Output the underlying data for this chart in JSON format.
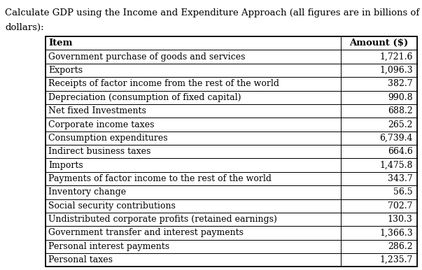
{
  "title_line1": "Calculate GDP using the Income and Expenditure Approach (all figures are in billions of",
  "title_line2": "dollars):",
  "col1_header": "Item",
  "col2_header": "Amount ($)",
  "rows": [
    [
      "Government purchase of goods and services",
      "1,721.6"
    ],
    [
      "Exports",
      "1,096.3"
    ],
    [
      "Receipts of factor income from the rest of the world",
      "382.7"
    ],
    [
      "Depreciation (consumption of fixed capital)",
      "990.8"
    ],
    [
      "Net fixed Investments",
      "688.2"
    ],
    [
      "Corporate income taxes",
      "265.2"
    ],
    [
      "Consumption expenditures",
      "6,739.4"
    ],
    [
      "Indirect business taxes",
      "664.6"
    ],
    [
      "Imports",
      "1,475.8"
    ],
    [
      "Payments of factor income to the rest of the world",
      "343.7"
    ],
    [
      "Inventory change",
      "56.5"
    ],
    [
      "Social security contributions",
      "702.7"
    ],
    [
      "Undistributed corporate profits (retained earnings)",
      "130.3"
    ],
    [
      "Government transfer and interest payments",
      "1,366.3"
    ],
    [
      "Personal interest payments",
      "286.2"
    ],
    [
      "Personal taxes",
      "1,235.7"
    ]
  ],
  "background_color": "#ffffff",
  "border_color": "#000000",
  "text_color": "#000000",
  "title_fontsize": 9.5,
  "header_fontsize": 9.5,
  "cell_fontsize": 9.0,
  "fig_width": 6.03,
  "fig_height": 3.86,
  "dpi": 100
}
